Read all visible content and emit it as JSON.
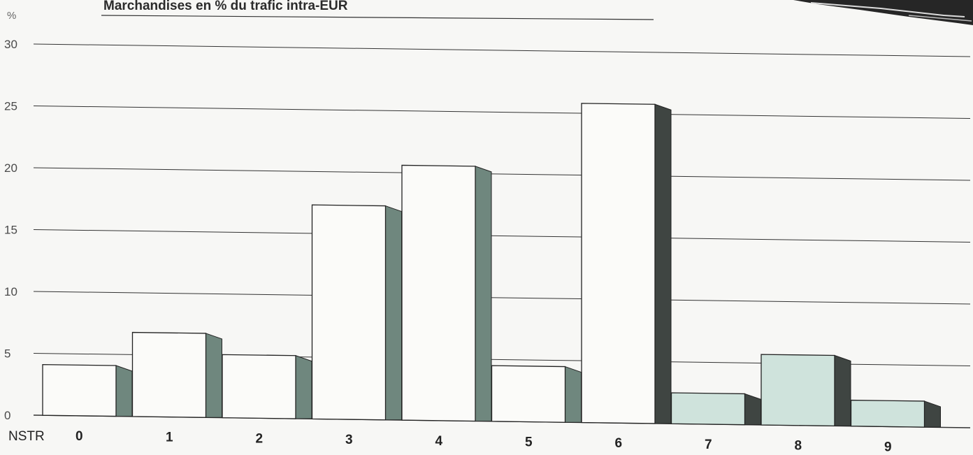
{
  "chart_data": {
    "type": "bar",
    "title": "Marchandises en % du trafic intra-EUR",
    "ylabel": "%",
    "xlabel": "NSTR",
    "categories": [
      "0",
      "1",
      "2",
      "3",
      "4",
      "5",
      "6",
      "7",
      "8",
      "9"
    ],
    "values": [
      4.1,
      6.8,
      5.1,
      17.3,
      20.6,
      4.5,
      25.8,
      2.5,
      5.7,
      2.1
    ],
    "yticks": [
      0,
      5,
      10,
      15,
      20,
      25,
      30
    ],
    "ylim": [
      0,
      30
    ],
    "grid": true,
    "colors": {
      "front_light": "#fbfbf9",
      "front_tinted": "#cfe3dc",
      "side_green": "#6f877e",
      "side_dark": "#3f4542",
      "grid": "#333333"
    }
  }
}
